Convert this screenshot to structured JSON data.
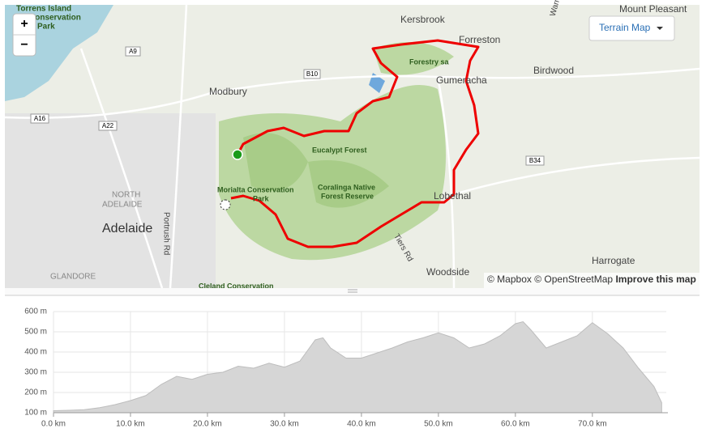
{
  "map": {
    "labels": [
      "Torrens Island",
      "Conservation",
      "Park",
      "Kersbrook",
      "Mount Pleasant",
      "Forreston",
      "Forestry sa",
      "Gumeracha",
      "Birdwood",
      "Modbury",
      "Eucalypt Forest",
      "Morialta Conservation",
      "Park",
      "Coralinga Native",
      "Forest Reserve",
      "NORTH",
      "ADELAIDE",
      "Adelaide",
      "Portrush Rd",
      "Tiers Rd",
      "Lobethal",
      "Woodside",
      "Harrogate",
      "GLANDORE",
      "Cleland Conservation",
      "Warren"
    ],
    "shields": [
      "A9",
      "B10",
      "A16",
      "A22",
      "B34"
    ],
    "zoom_in": "+",
    "zoom_out": "−",
    "style_button": "Terrain Map",
    "attribution": [
      "© Mapbox",
      "© OpenStreetMap",
      "Improve this map"
    ]
  },
  "chart_data": {
    "type": "area",
    "color": "#d6d6d6",
    "x": [
      0,
      2,
      4,
      6,
      8,
      10,
      12,
      14,
      16,
      18,
      20,
      22,
      24,
      26,
      28,
      30,
      32,
      34,
      35,
      36,
      38,
      40,
      42,
      44,
      46,
      48,
      50,
      52,
      54,
      56,
      58,
      60,
      61,
      62,
      64,
      66,
      68,
      70,
      72,
      74,
      76,
      78,
      79
    ],
    "values": [
      110,
      112,
      115,
      125,
      140,
      160,
      185,
      240,
      280,
      265,
      290,
      300,
      330,
      320,
      345,
      325,
      355,
      460,
      470,
      420,
      370,
      370,
      395,
      420,
      450,
      470,
      495,
      470,
      420,
      440,
      480,
      540,
      550,
      510,
      420,
      450,
      480,
      545,
      490,
      420,
      320,
      230,
      150
    ],
    "xlim": [
      0,
      79.6
    ],
    "ylim": [
      100,
      600
    ],
    "xticks": [
      {
        "value": 0,
        "label": "0.0 km"
      },
      {
        "value": 10,
        "label": "10.0 km"
      },
      {
        "value": 20,
        "label": "20.0 km"
      },
      {
        "value": 30,
        "label": "30.0 km"
      },
      {
        "value": 40,
        "label": "40.0 km"
      },
      {
        "value": 50,
        "label": "50.0 km"
      },
      {
        "value": 60,
        "label": "60.0 km"
      },
      {
        "value": 70,
        "label": "70.0 km"
      }
    ],
    "yticks": [
      {
        "value": 100,
        "label": "100 m"
      },
      {
        "value": 200,
        "label": "200 m"
      },
      {
        "value": 300,
        "label": "300 m"
      },
      {
        "value": 400,
        "label": "400 m"
      },
      {
        "value": 500,
        "label": "500 m"
      },
      {
        "value": 600,
        "label": "600 m"
      }
    ],
    "grid": true
  }
}
